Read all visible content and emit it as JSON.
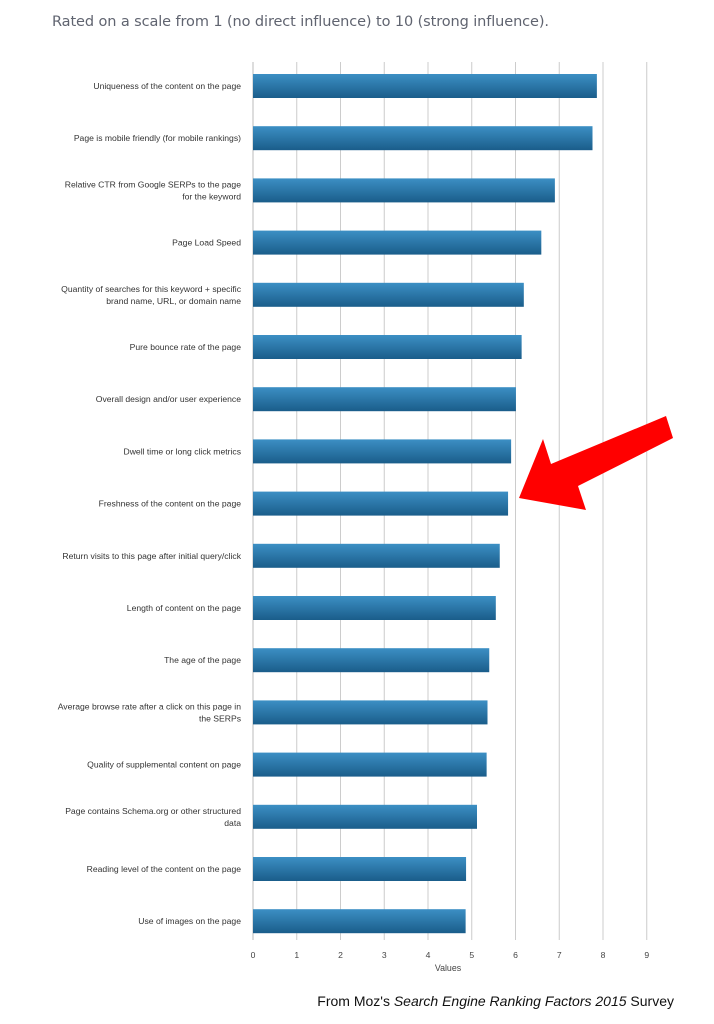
{
  "header": {
    "subtitle": "Rated on a scale from 1 (no direct influence) to 10 (strong influence)."
  },
  "footer": {
    "prefix": "From Moz's ",
    "italic": "Search Engine Ranking Factors 2015",
    "suffix": " Survey"
  },
  "colors": {
    "bar_top": "#3c8fc4",
    "bar_bottom": "#1a5d8a",
    "grid": "#cccccc",
    "arrow": "#ff0000"
  },
  "chart_data": {
    "type": "bar",
    "orientation": "horizontal",
    "title": "Rated on a scale from 1 (no direct influence) to 10 (strong influence).",
    "xlabel": "Values",
    "ylabel": "",
    "xlim": [
      0,
      10
    ],
    "xticks": [
      0,
      1,
      2,
      3,
      4,
      5,
      6,
      7,
      8,
      9
    ],
    "grid": true,
    "legend": "none",
    "annotation": "red arrow pointing at 'Freshness of the content on the page'",
    "categories": [
      [
        "Uniqueness of the content on the page"
      ],
      [
        "Page is mobile friendly (for mobile rankings)"
      ],
      [
        "Relative CTR from Google SERPs to the page",
        "for the keyword"
      ],
      [
        "Page Load Speed"
      ],
      [
        "Quantity of searches for this keyword + specific",
        "brand name, URL, or domain name"
      ],
      [
        "Pure bounce rate of the page"
      ],
      [
        "Overall design and/or user experience"
      ],
      [
        "Dwell time or long click metrics"
      ],
      [
        "Freshness of the content on the page"
      ],
      [
        "Return visits to this page after initial query/click"
      ],
      [
        "Length of content on the page"
      ],
      [
        "The age of the page"
      ],
      [
        "Average browse rate after a click on this page in",
        "the SERPs"
      ],
      [
        "Quality of supplemental content on page"
      ],
      [
        "Page contains Schema.org or other structured",
        "data"
      ],
      [
        "Reading level of the content on the page"
      ],
      [
        "Use of images on the page"
      ]
    ],
    "values": [
      7.86,
      7.76,
      6.9,
      6.59,
      6.19,
      6.14,
      6.01,
      5.9,
      5.83,
      5.64,
      5.55,
      5.4,
      5.36,
      5.34,
      5.12,
      4.87,
      4.86
    ]
  }
}
